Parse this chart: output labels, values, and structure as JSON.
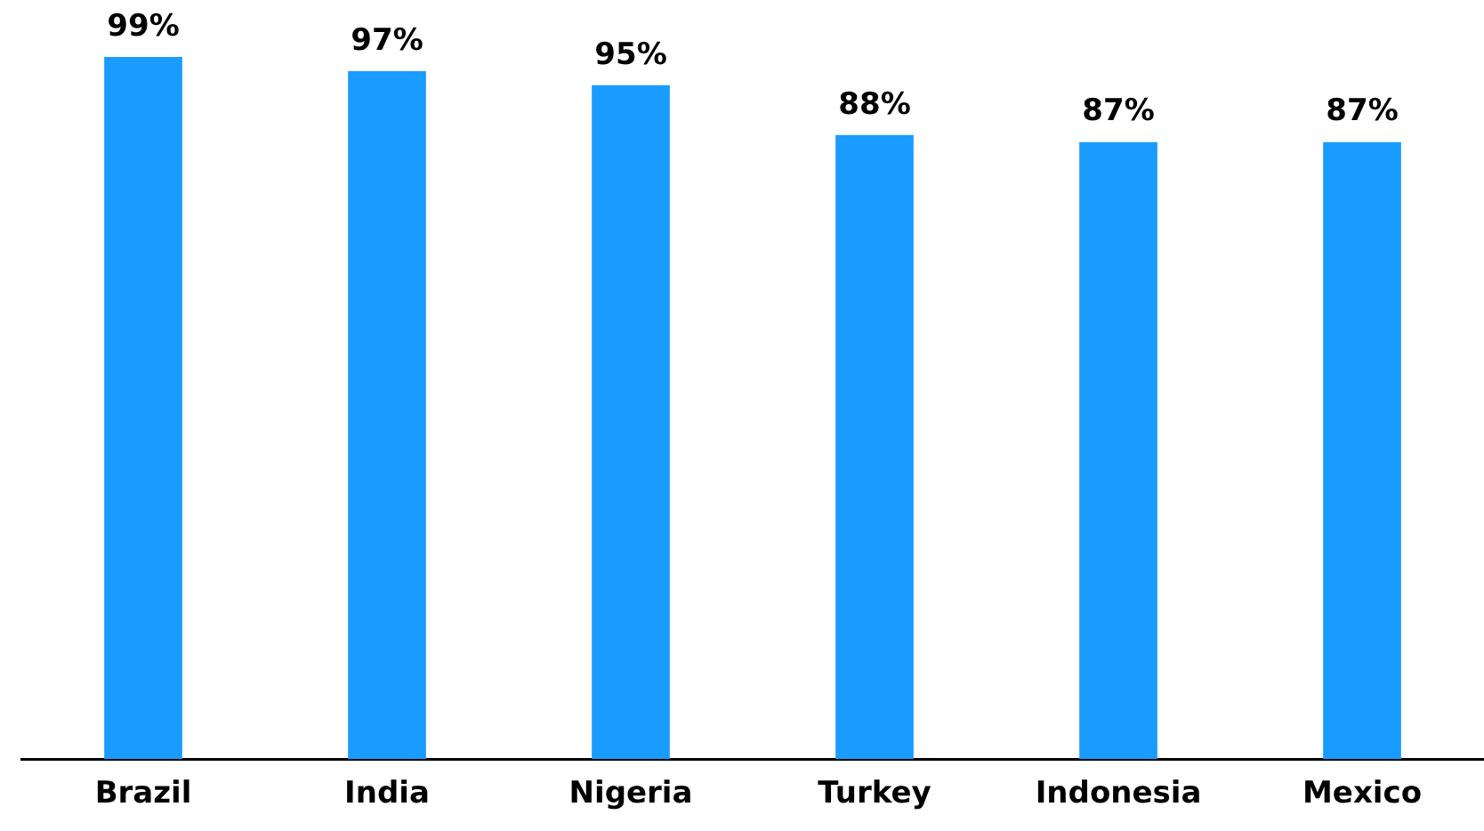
{
  "chart_data": {
    "type": "bar",
    "categories": [
      "Brazil",
      "India",
      "Nigeria",
      "Turkey",
      "Indonesia",
      "Mexico"
    ],
    "values": [
      99,
      97,
      95,
      88,
      87,
      87
    ],
    "value_labels": [
      "99%",
      "97%",
      "95%",
      "88%",
      "87%",
      "87%"
    ],
    "color": "#1a9bff",
    "grid": false,
    "legend": false
  }
}
